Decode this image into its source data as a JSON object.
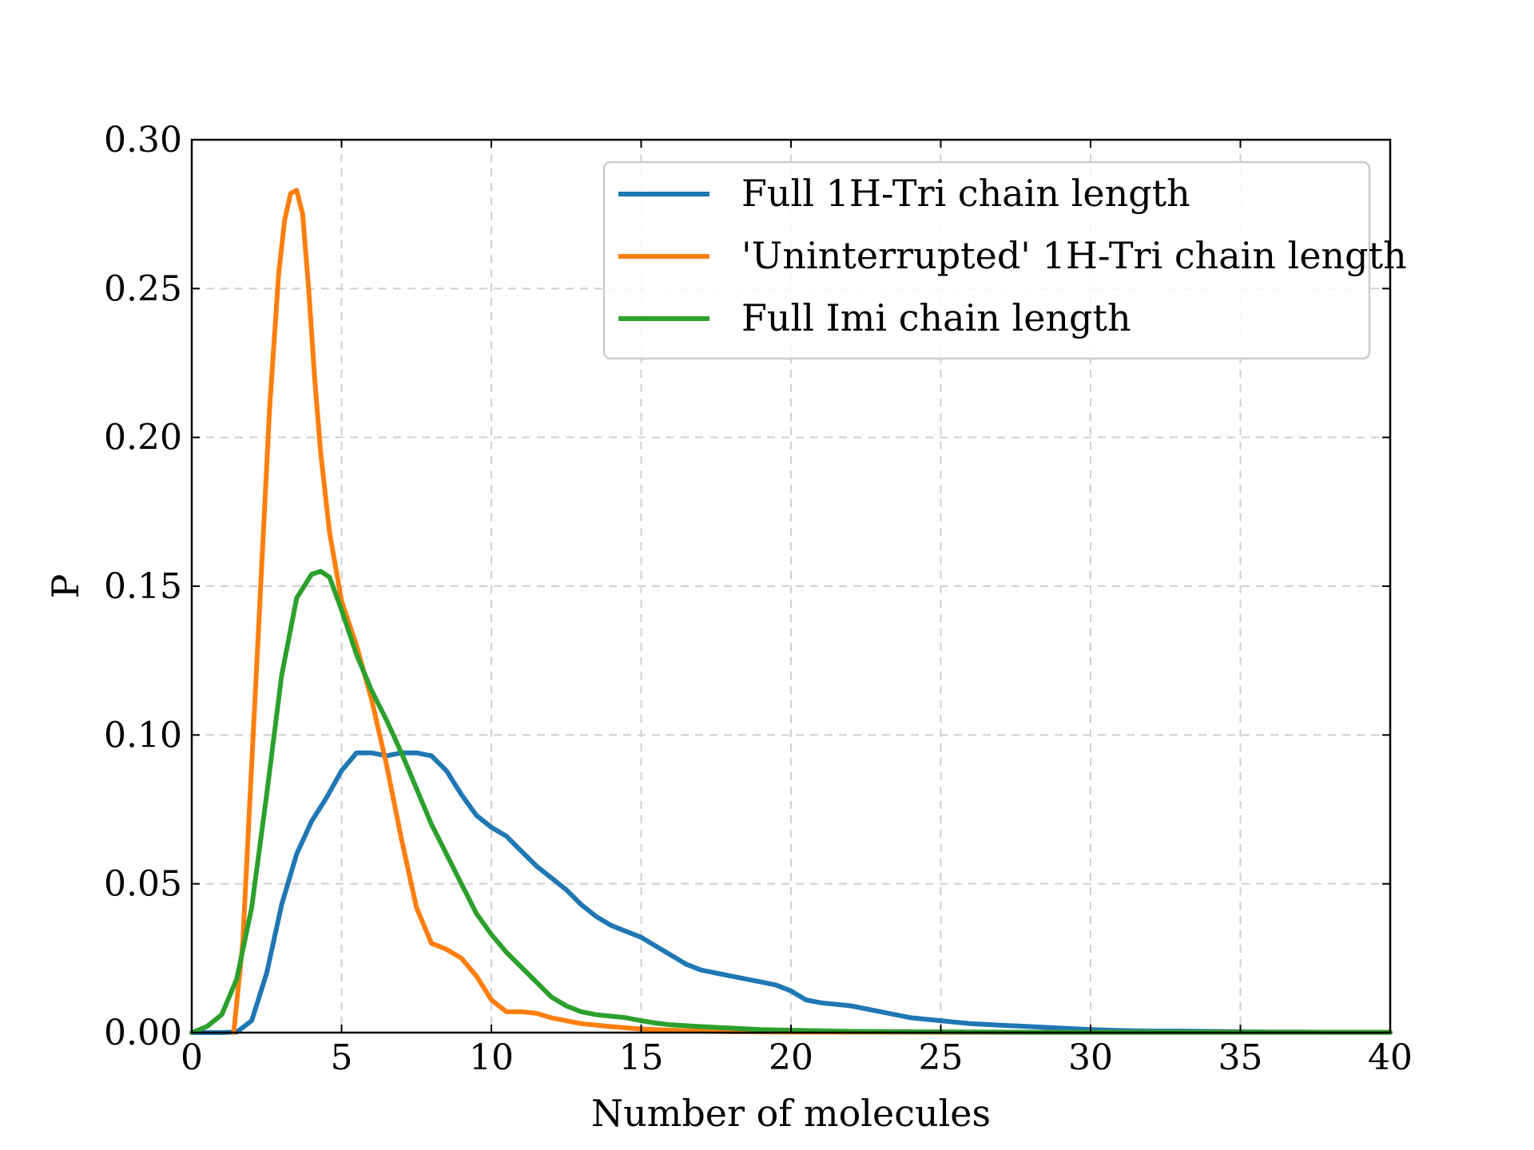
{
  "chart_data": {
    "type": "line",
    "title": "",
    "xlabel": "Number of molecules",
    "ylabel": "P",
    "xlim": [
      0,
      40
    ],
    "ylim": [
      0,
      0.3
    ],
    "xticks": [
      0,
      5,
      10,
      15,
      20,
      25,
      30,
      35,
      40
    ],
    "yticks": [
      0.0,
      0.05,
      0.1,
      0.15,
      0.2,
      0.25,
      0.3
    ],
    "xtick_labels": [
      "0",
      "5",
      "10",
      "15",
      "20",
      "25",
      "30",
      "35",
      "40"
    ],
    "ytick_labels": [
      "0.00",
      "0.05",
      "0.10",
      "0.15",
      "0.20",
      "0.25",
      "0.30"
    ],
    "grid": true,
    "legend_position": "top-right",
    "series": [
      {
        "name": "Full 1H-Tri chain length",
        "color": "#1f77b4",
        "x": [
          0,
          1,
          1.5,
          2,
          2.5,
          3,
          3.5,
          4,
          4.5,
          5,
          5.5,
          6,
          6.5,
          7,
          7.5,
          8,
          8.5,
          9,
          9.5,
          10,
          10.5,
          11,
          11.5,
          12,
          12.5,
          13,
          13.5,
          14,
          14.5,
          15,
          15.5,
          16,
          16.5,
          17,
          17.5,
          18,
          18.5,
          19,
          19.5,
          20,
          20.5,
          21,
          22,
          23,
          24,
          25,
          26,
          27,
          28,
          29,
          30,
          31,
          32,
          33,
          34,
          35,
          36,
          37,
          38,
          39,
          40
        ],
        "y": [
          0,
          0,
          0.0002,
          0.004,
          0.02,
          0.043,
          0.06,
          0.071,
          0.079,
          0.088,
          0.094,
          0.094,
          0.093,
          0.094,
          0.094,
          0.093,
          0.088,
          0.08,
          0.073,
          0.069,
          0.066,
          0.061,
          0.056,
          0.052,
          0.048,
          0.043,
          0.039,
          0.036,
          0.034,
          0.032,
          0.029,
          0.026,
          0.023,
          0.021,
          0.02,
          0.019,
          0.018,
          0.017,
          0.016,
          0.014,
          0.011,
          0.01,
          0.009,
          0.007,
          0.005,
          0.004,
          0.003,
          0.0025,
          0.002,
          0.0015,
          0.001,
          0.0007,
          0.0005,
          0.0005,
          0.0004,
          0.0003,
          0.0002,
          0.0002,
          0.0001,
          0.0001,
          0.0001
        ]
      },
      {
        "name": "'Uninterrupted' 1H-Tri chain length",
        "color": "#ff7f0e",
        "x": [
          1.4,
          1.7,
          2,
          2.3,
          2.6,
          2.9,
          3.1,
          3.3,
          3.5,
          3.7,
          3.9,
          4.1,
          4.3,
          4.6,
          5,
          5.5,
          6,
          6.5,
          7,
          7.5,
          8,
          8.5,
          9,
          9.5,
          10,
          10.5,
          11,
          11.5,
          12,
          13,
          14,
          15,
          16,
          17,
          18,
          20,
          25,
          30,
          35,
          40
        ],
        "y": [
          0,
          0.03,
          0.09,
          0.15,
          0.21,
          0.255,
          0.273,
          0.282,
          0.283,
          0.275,
          0.25,
          0.22,
          0.195,
          0.168,
          0.145,
          0.13,
          0.112,
          0.09,
          0.065,
          0.042,
          0.03,
          0.028,
          0.025,
          0.019,
          0.011,
          0.007,
          0.007,
          0.0065,
          0.005,
          0.003,
          0.002,
          0.0012,
          0.0008,
          0.0005,
          0.0003,
          0.0002,
          0.0001,
          0.0001,
          0.0001,
          0.0001
        ]
      },
      {
        "name": "Full Imi chain length",
        "color": "#2ca02c",
        "x": [
          0,
          0.5,
          1,
          1.5,
          2,
          2.5,
          3,
          3.5,
          4,
          4.3,
          4.6,
          5,
          5.5,
          6,
          6.5,
          7,
          7.5,
          8,
          8.5,
          9,
          9.5,
          10,
          10.5,
          11,
          11.5,
          12,
          12.5,
          13,
          13.5,
          14,
          14.5,
          15,
          15.5,
          16,
          17,
          18,
          19,
          20,
          21,
          22,
          24,
          26,
          28,
          30,
          35,
          40
        ],
        "y": [
          0,
          0.002,
          0.006,
          0.018,
          0.042,
          0.08,
          0.12,
          0.146,
          0.154,
          0.155,
          0.153,
          0.142,
          0.127,
          0.115,
          0.105,
          0.094,
          0.082,
          0.07,
          0.06,
          0.05,
          0.04,
          0.033,
          0.027,
          0.022,
          0.017,
          0.012,
          0.009,
          0.007,
          0.006,
          0.0055,
          0.005,
          0.004,
          0.0032,
          0.0026,
          0.002,
          0.0015,
          0.001,
          0.0008,
          0.0006,
          0.0004,
          0.0003,
          0.0002,
          0.0001,
          0.0001,
          0.0001,
          0.0001
        ]
      }
    ]
  }
}
